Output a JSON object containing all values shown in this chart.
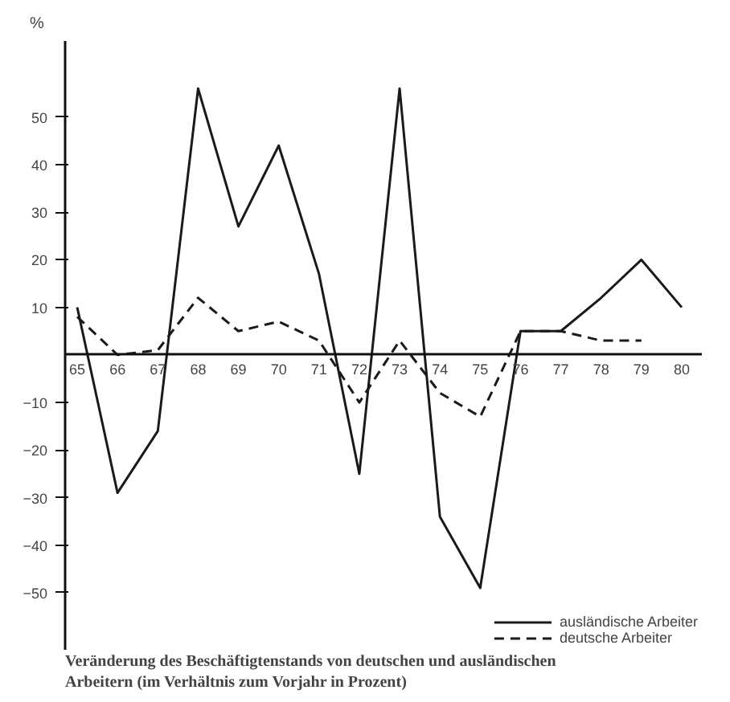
{
  "chart_data": {
    "type": "line",
    "title": "Veränderung des Beschäftigtenstands von deutschen und ausländischen Arbeitern (im Verhältnis zum Vorjahr in Prozent)",
    "ylabel": "%",
    "x": [
      65,
      66,
      67,
      68,
      69,
      70,
      71,
      72,
      73,
      74,
      75,
      76,
      77,
      78,
      79,
      80
    ],
    "series": [
      {
        "name": "ausländische Arbeiter",
        "color": "#1a1a1a",
        "line_style": "solid",
        "values": [
          10,
          -29,
          -16,
          56,
          27,
          44,
          17,
          -25,
          56,
          -34,
          -49,
          5,
          5,
          12,
          20,
          10
        ]
      },
      {
        "name": "deutsche Arbeiter",
        "color": "#1a1a1a",
        "line_style": "dashed",
        "values": [
          8,
          0,
          1,
          12,
          5,
          7,
          3,
          -10,
          3,
          -8,
          -13,
          5,
          5,
          3,
          3,
          null
        ]
      }
    ],
    "xlim": [
      64.7,
      80.5
    ],
    "ylim": [
      -62,
      66
    ],
    "xticks": [
      65,
      66,
      67,
      68,
      69,
      70,
      71,
      72,
      73,
      74,
      75,
      76,
      77,
      78,
      79,
      80
    ],
    "yticks": [
      -50,
      -40,
      -30,
      -20,
      -10,
      10,
      20,
      30,
      40,
      50
    ],
    "grid": false,
    "legend": "bottom right",
    "marker": "none"
  }
}
